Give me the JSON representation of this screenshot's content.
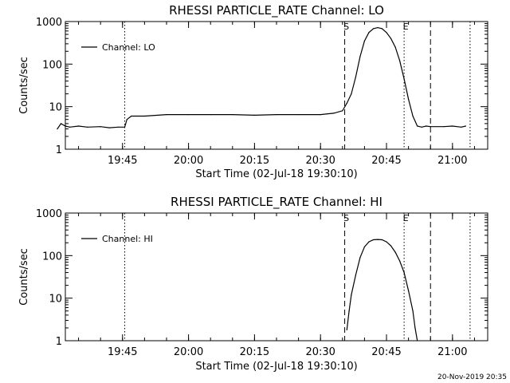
{
  "footer_timestamp": "20-Nov-2019 20:35",
  "chart_data": [
    {
      "type": "line",
      "title": "RHESSI PARTICLE_RATE Channel: LO",
      "xlabel": "Start Time (02-Jul-18 19:30:10)",
      "ylabel": "Counts/sec",
      "yscale": "log",
      "ylim": [
        1,
        1000
      ],
      "y_ticks": [
        "1",
        "10",
        "100",
        "1000"
      ],
      "xlim": [
        "19:32",
        "21:08"
      ],
      "x_ticks": [
        "19:45",
        "20:00",
        "20:15",
        "20:30",
        "20:45",
        "21:00"
      ],
      "legend": {
        "position": "upper-left",
        "entries": [
          "Channel: LO"
        ]
      },
      "markers": [
        {
          "time": "19:45:30",
          "style": "dotted"
        },
        {
          "time": "20:35:30",
          "style": "dashed",
          "label": "S"
        },
        {
          "time": "20:49:00",
          "style": "dotted",
          "label": "E"
        },
        {
          "time": "20:55:00",
          "style": "dashed"
        },
        {
          "time": "21:04:00",
          "style": "dotted"
        }
      ],
      "series": [
        {
          "name": "Channel: LO",
          "x": [
            "19:30:10",
            "19:31:00",
            "19:32:00",
            "19:33:00",
            "19:35:00",
            "19:37:00",
            "19:40:00",
            "19:42:00",
            "19:44:00",
            "19:45:30",
            "19:46:00",
            "19:47:00",
            "19:50:00",
            "19:55:00",
            "20:00:00",
            "20:05:00",
            "20:10:00",
            "20:15:00",
            "20:20:00",
            "20:25:00",
            "20:30:00",
            "20:33:00",
            "20:35:00",
            "20:36:00",
            "20:37:00",
            "20:38:00",
            "20:39:00",
            "20:40:00",
            "20:41:00",
            "20:42:00",
            "20:43:00",
            "20:44:00",
            "20:45:00",
            "20:46:00",
            "20:47:00",
            "20:48:00",
            "20:49:00",
            "20:50:00",
            "20:51:00",
            "20:52:00",
            "20:53:00",
            "20:54:00",
            "20:55:00",
            "20:58:00",
            "21:00:00",
            "21:02:00",
            "21:03:00"
          ],
          "y": [
            3,
            4,
            3.5,
            3.3,
            3.5,
            3.3,
            3.4,
            3.2,
            3.3,
            3.3,
            5,
            6,
            6,
            6.5,
            6.5,
            6.5,
            6.5,
            6.3,
            6.5,
            6.5,
            6.5,
            7,
            8,
            12,
            20,
            50,
            150,
            350,
            550,
            680,
            720,
            680,
            550,
            400,
            250,
            120,
            45,
            15,
            6,
            3.5,
            3.3,
            3.5,
            3.4,
            3.4,
            3.5,
            3.3,
            3.5
          ]
        }
      ]
    },
    {
      "type": "line",
      "title": "RHESSI PARTICLE_RATE Channel: HI",
      "xlabel": "Start Time (02-Jul-18 19:30:10)",
      "ylabel": "Counts/sec",
      "yscale": "log",
      "ylim": [
        1,
        1000
      ],
      "y_ticks": [
        "1",
        "10",
        "100",
        "1000"
      ],
      "xlim": [
        "19:32",
        "21:08"
      ],
      "x_ticks": [
        "19:45",
        "20:00",
        "20:15",
        "20:30",
        "20:45",
        "21:00"
      ],
      "legend": {
        "position": "upper-left",
        "entries": [
          "Channel: HI"
        ]
      },
      "markers": [
        {
          "time": "19:45:30",
          "style": "dotted"
        },
        {
          "time": "20:35:30",
          "style": "dashed",
          "label": "S"
        },
        {
          "time": "20:49:00",
          "style": "dotted",
          "label": "E"
        },
        {
          "time": "20:55:00",
          "style": "dashed"
        },
        {
          "time": "21:04:00",
          "style": "dotted"
        }
      ],
      "series": [
        {
          "name": "Channel: HI",
          "x": [
            "20:36:00",
            "20:36:30",
            "20:37:00",
            "20:38:00",
            "20:39:00",
            "20:40:00",
            "20:41:00",
            "20:42:00",
            "20:43:00",
            "20:44:00",
            "20:45:00",
            "20:46:00",
            "20:47:00",
            "20:48:00",
            "20:49:00",
            "20:50:00",
            "20:51:00",
            "20:51:30",
            "20:52:00"
          ],
          "y": [
            1.8,
            5,
            12,
            35,
            90,
            160,
            210,
            235,
            240,
            235,
            210,
            170,
            120,
            75,
            40,
            15,
            5,
            2,
            1
          ]
        }
      ]
    }
  ]
}
